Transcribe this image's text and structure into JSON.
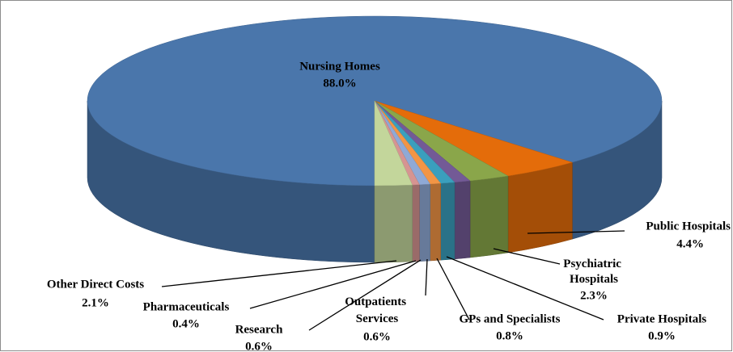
{
  "chart_data": {
    "type": "pie3d",
    "categories": [
      "Nursing Homes",
      "Public Hospitals",
      "Psychiatric Hospitals",
      "Private Hospitals",
      "GPs and Specialists",
      "Outpatients Services",
      "Research",
      "Pharmaceuticals",
      "Other Direct Costs"
    ],
    "values": [
      88.0,
      4.4,
      2.3,
      0.9,
      0.8,
      0.6,
      0.6,
      0.4,
      2.1
    ],
    "value_labels": [
      "88.0%",
      "4.4%",
      "2.3%",
      "0.9%",
      "0.8%",
      "0.6%",
      "0.6%",
      "0.4%",
      "2.1%"
    ],
    "colors": [
      "#4a76ab",
      "#e46c0a",
      "#8aa64a",
      "#735a96",
      "#3a9fbd",
      "#f29545",
      "#8fa9d6",
      "#d69492",
      "#c3d69b"
    ]
  }
}
